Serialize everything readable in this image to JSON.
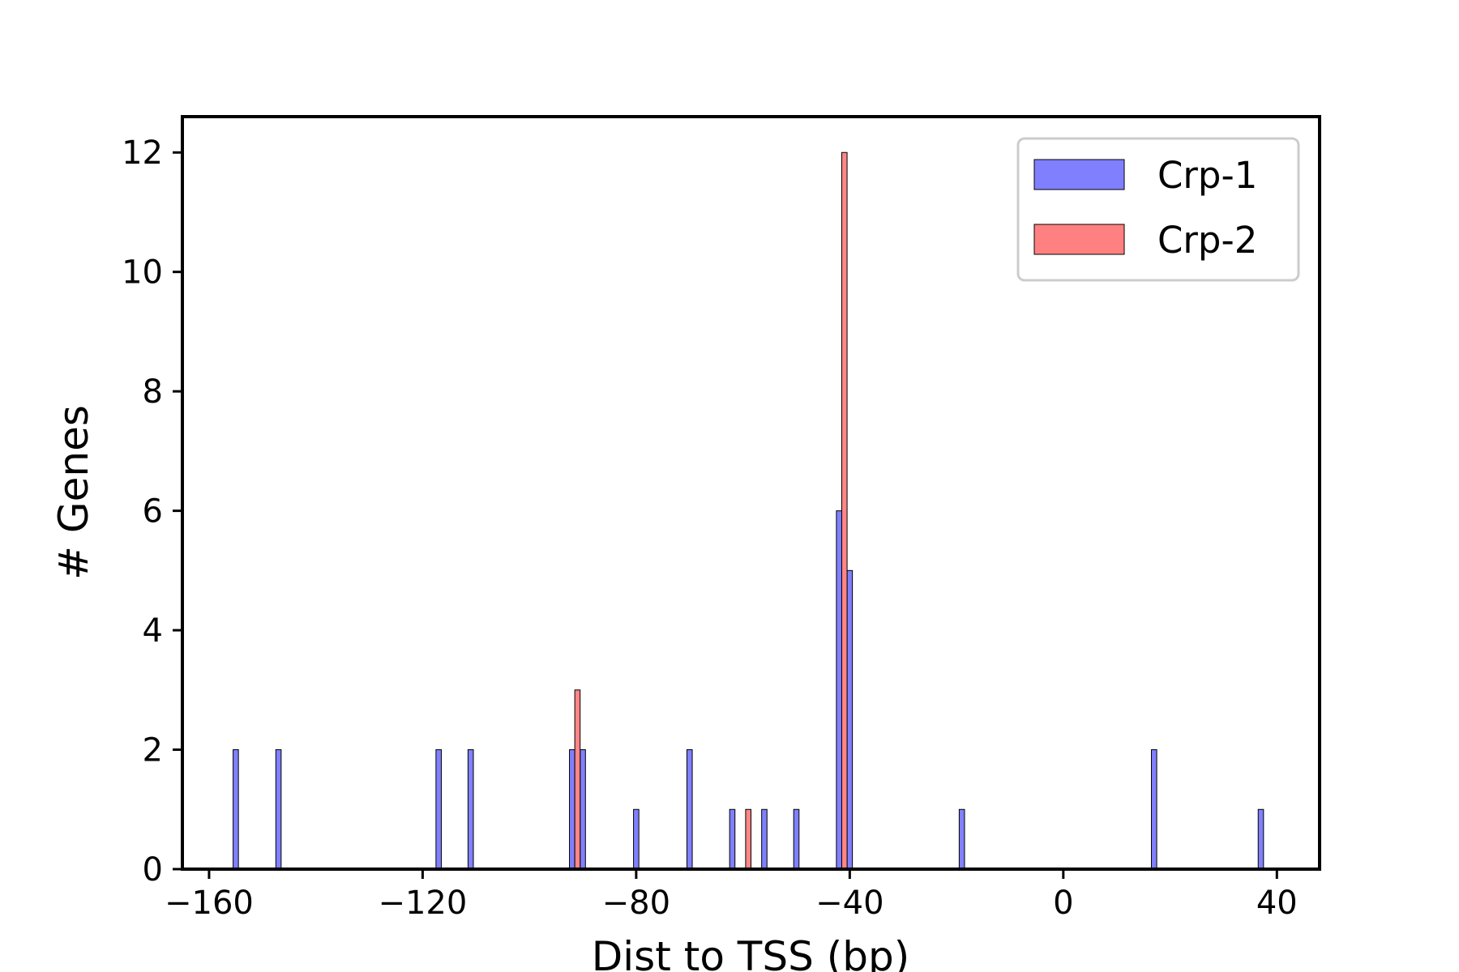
{
  "chart_data": {
    "type": "bar",
    "xlabel": "Dist to TSS (bp)",
    "ylabel": "# Genes",
    "xlim": [
      -165,
      48
    ],
    "ylim": [
      0,
      12.6
    ],
    "x_ticks": [
      -160,
      -120,
      -80,
      -40,
      0,
      40
    ],
    "x_tick_labels": [
      "−160",
      "−120",
      "−80",
      "−40",
      "0",
      "40"
    ],
    "y_ticks": [
      0,
      2,
      4,
      6,
      8,
      10,
      12
    ],
    "y_tick_labels": [
      "0",
      "2",
      "4",
      "6",
      "8",
      "10",
      "12"
    ],
    "bin_width": 2,
    "legend_position": "top-right",
    "grid": false,
    "series": [
      {
        "name": "Crp-1",
        "color": "#8080ff",
        "bins": [
          {
            "x": -155,
            "count": 2
          },
          {
            "x": -147,
            "count": 2
          },
          {
            "x": -117,
            "count": 2
          },
          {
            "x": -111,
            "count": 2
          },
          {
            "x": -92,
            "count": 2
          },
          {
            "x": -90,
            "count": 2
          },
          {
            "x": -80,
            "count": 1
          },
          {
            "x": -70,
            "count": 2
          },
          {
            "x": -62,
            "count": 1
          },
          {
            "x": -56,
            "count": 1
          },
          {
            "x": -50,
            "count": 1
          },
          {
            "x": -42,
            "count": 6
          },
          {
            "x": -40,
            "count": 5
          },
          {
            "x": -19,
            "count": 1
          },
          {
            "x": 17,
            "count": 2
          },
          {
            "x": 37,
            "count": 1
          }
        ]
      },
      {
        "name": "Crp-2",
        "color": "#ff8080",
        "bins": [
          {
            "x": -91,
            "count": 3
          },
          {
            "x": -59,
            "count": 1
          },
          {
            "x": -41,
            "count": 12
          }
        ]
      }
    ]
  }
}
